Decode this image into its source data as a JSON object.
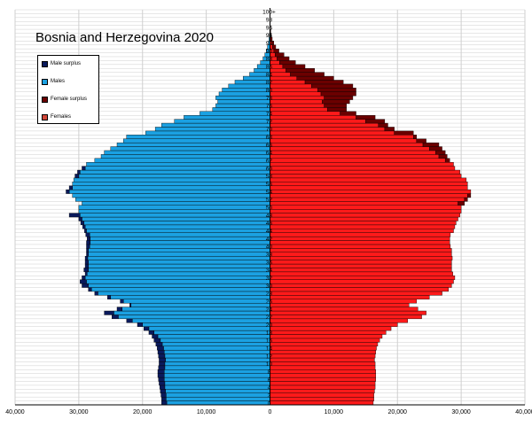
{
  "chart_data": {
    "type": "population-pyramid",
    "title": "Bosnia and Herzegovina 2020",
    "colors": {
      "male": "#1ba1e2",
      "male_surplus": "#0a1a5c",
      "female": "#ff1a1a",
      "female_surplus": "#6b0000",
      "grid": "#cfcfcf",
      "axis": "#000000"
    },
    "legend": [
      {
        "label": "Male surplus",
        "color": "#0a1a5c"
      },
      {
        "label": "Males",
        "color": "#1ba1e2"
      },
      {
        "label": "Female surplus",
        "color": "#6b0000"
      },
      {
        "label": "Females",
        "color": "#d2483a"
      }
    ],
    "legend_placement": "top-left",
    "x_ticks": [
      "40,000",
      "30,000",
      "20,000",
      "10,000",
      "0",
      "10,000",
      "20,000",
      "30,000",
      "40,000"
    ],
    "xlim": [
      -40000,
      40000
    ],
    "grid": true,
    "age_tick_labels": [
      "0",
      "2",
      "4",
      "6",
      "8",
      "10",
      "12",
      "14",
      "16",
      "18",
      "20",
      "22",
      "24",
      "26",
      "28",
      "30",
      "32",
      "34",
      "36",
      "38",
      "40",
      "42",
      "44",
      "46",
      "48",
      "50",
      "52",
      "54",
      "56",
      "58",
      "60",
      "62",
      "64",
      "66",
      "68",
      "70",
      "72",
      "74",
      "76",
      "78",
      "80",
      "82",
      "84",
      "86",
      "88",
      "90",
      "92",
      "94",
      "96",
      "98",
      "100+"
    ],
    "ages": [
      0,
      1,
      2,
      3,
      4,
      5,
      6,
      7,
      8,
      9,
      10,
      11,
      12,
      13,
      14,
      15,
      16,
      17,
      18,
      19,
      20,
      21,
      22,
      23,
      24,
      25,
      26,
      27,
      28,
      29,
      30,
      31,
      32,
      33,
      34,
      35,
      36,
      37,
      38,
      39,
      40,
      41,
      42,
      43,
      44,
      45,
      46,
      47,
      48,
      49,
      50,
      51,
      52,
      53,
      54,
      55,
      56,
      57,
      58,
      59,
      60,
      61,
      62,
      63,
      64,
      65,
      66,
      67,
      68,
      69,
      70,
      71,
      72,
      73,
      74,
      75,
      76,
      77,
      78,
      79,
      80,
      81,
      82,
      83,
      84,
      85,
      86,
      87,
      88,
      89,
      90,
      91,
      92,
      93,
      94,
      95,
      96,
      97,
      98,
      99,
      "100+"
    ],
    "males": [
      17000,
      17000,
      17100,
      17200,
      17300,
      17400,
      17500,
      17600,
      17600,
      17500,
      17400,
      17400,
      17500,
      17600,
      17700,
      17900,
      18200,
      18500,
      19000,
      19800,
      20800,
      22500,
      24800,
      26000,
      24000,
      22000,
      23500,
      25500,
      27500,
      28500,
      29500,
      29800,
      29500,
      29000,
      29200,
      29000,
      29000,
      29000,
      28800,
      28800,
      28800,
      28800,
      28700,
      28900,
      29100,
      29400,
      29700,
      30000,
      31500,
      30000,
      30000,
      29500,
      30500,
      31000,
      32000,
      31500,
      31000,
      30800,
      30600,
      30200,
      29500,
      28800,
      27500,
      26500,
      26000,
      25000,
      24000,
      23000,
      22500,
      19500,
      18000,
      17000,
      15000,
      13500,
      11000,
      9000,
      8500,
      8200,
      8500,
      8000,
      7500,
      6500,
      5500,
      4200,
      3200,
      2500,
      2000,
      1500,
      1100,
      800,
      600,
      400,
      250,
      150,
      100,
      60,
      40,
      25,
      15,
      10,
      5
    ],
    "females": [
      16200,
      16300,
      16300,
      16400,
      16500,
      16500,
      16600,
      16600,
      16600,
      16500,
      16500,
      16400,
      16500,
      16600,
      16700,
      16900,
      17200,
      17600,
      18200,
      19000,
      20000,
      21600,
      23800,
      24500,
      23200,
      21800,
      23000,
      25000,
      27000,
      28000,
      28500,
      28800,
      29000,
      28700,
      28500,
      28500,
      28500,
      28600,
      28500,
      28500,
      28300,
      28200,
      28200,
      28300,
      28800,
      29000,
      29200,
      29500,
      29800,
      30000,
      30000,
      30500,
      31000,
      31500,
      31500,
      31000,
      31000,
      30800,
      30000,
      29800,
      29000,
      28800,
      28200,
      27800,
      27500,
      27000,
      26500,
      24500,
      23000,
      22500,
      19500,
      18500,
      18000,
      16500,
      13500,
      12000,
      12000,
      12500,
      13000,
      13500,
      13500,
      13000,
      11500,
      10000,
      8500,
      7000,
      5500,
      4000,
      3000,
      2200,
      1400,
      900,
      600,
      350,
      200,
      120,
      80,
      50,
      30,
      15,
      8
    ]
  }
}
